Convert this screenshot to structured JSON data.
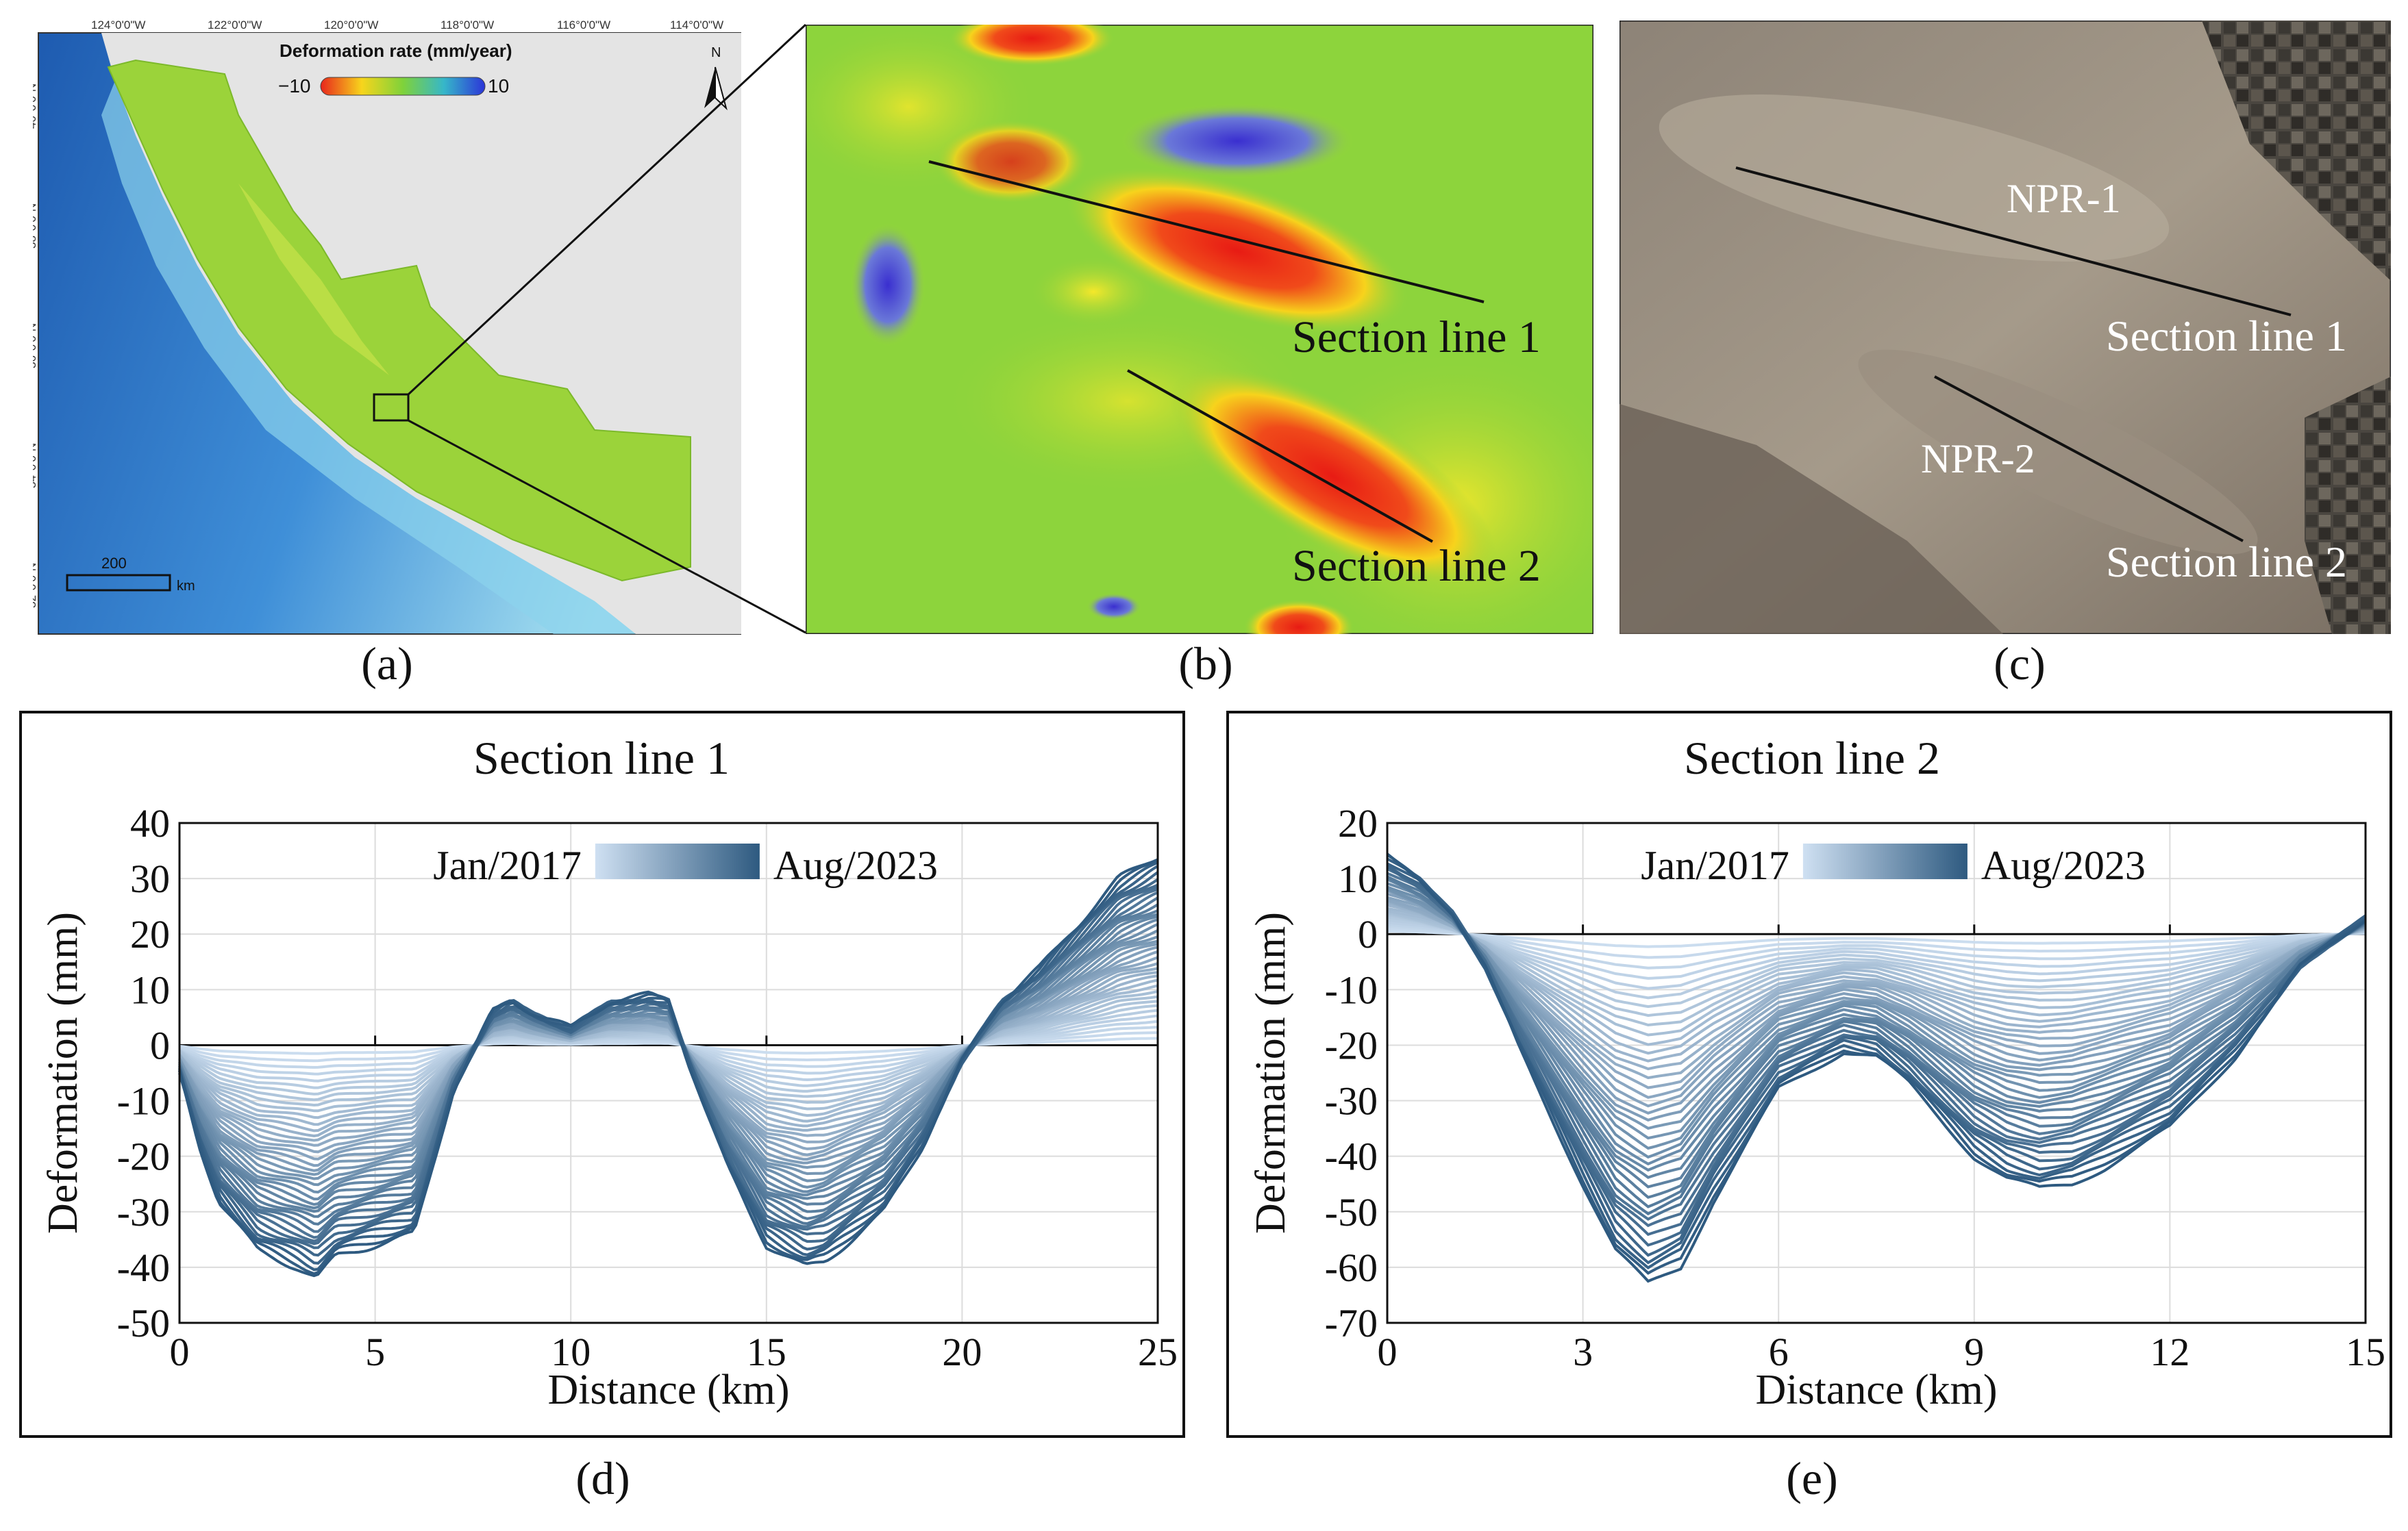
{
  "panel_a": {
    "caption": "(a)",
    "lon_ticks": [
      "124°0'0\"W",
      "122°0'0\"W",
      "120°0'0\"W",
      "118°0'0\"W",
      "116°0'0\"W",
      "114°0'0\"W"
    ],
    "lat_ticks": [
      "40°0'0\"N",
      "38°0'0\"N",
      "36°0'0\"N",
      "34°0'0\"N",
      "32°0'0\"N"
    ],
    "legend_title": "Deformation rate (mm/year)",
    "legend_min": "−10",
    "legend_max": "10",
    "north_label": "N",
    "scale_value": "200",
    "scale_unit": "km",
    "colors": {
      "ocean_deep": "#1f5fb8",
      "ocean_shallow": "#8fd6ee",
      "land": "#e2e2e2",
      "data": "#9bd33a"
    }
  },
  "panel_b": {
    "caption": "(b)",
    "line1_label": "Section line 1",
    "line2_label": "Section line 2"
  },
  "panel_c": {
    "caption": "(c)",
    "npr1_label": "NPR-1",
    "npr2_label": "NPR-2",
    "line1_label": "Section line 1",
    "line2_label": "Section line 2"
  },
  "chart_data": [
    {
      "type": "line",
      "panel": "(d)",
      "title": "Section line 1",
      "xlabel": "Distance (km)",
      "ylabel": "Deformation (mm)",
      "xlim": [
        0,
        25
      ],
      "ylim": [
        -50,
        40
      ],
      "xticks": [
        0,
        5,
        10,
        15,
        20,
        25
      ],
      "yticks": [
        -50,
        -40,
        -30,
        -20,
        -10,
        0,
        10,
        20,
        30,
        40
      ],
      "legend_start": "Jan/2017",
      "legend_end": "Aug/2023",
      "color_start": "#cfe0f2",
      "color_end": "#2e5a80",
      "series_count": 40,
      "final_profile": {
        "x": [
          0,
          0.5,
          1,
          2,
          3,
          3.5,
          4,
          5,
          6,
          7,
          8,
          8.5,
          9,
          10,
          11,
          12,
          12.5,
          13,
          14,
          15,
          16,
          16.5,
          17,
          18,
          19,
          20,
          21,
          22,
          23,
          24,
          25
        ],
        "y": [
          -5,
          -18,
          -28,
          -37,
          -40,
          -42,
          -38,
          -36,
          -34,
          -8,
          6,
          8,
          6,
          3,
          8,
          9,
          8,
          -3,
          -22,
          -36,
          -40,
          -39,
          -36,
          -30,
          -18,
          -3,
          8,
          14,
          22,
          30,
          34
        ]
      }
    },
    {
      "type": "line",
      "panel": "(e)",
      "title": "Section line 2",
      "xlabel": "Distance (km)",
      "ylabel": "Deformation (mm)",
      "xlim": [
        0,
        15
      ],
      "ylim": [
        -70,
        20
      ],
      "xticks": [
        0,
        3,
        6,
        9,
        12,
        15
      ],
      "yticks": [
        -70,
        -60,
        -50,
        -40,
        -30,
        -20,
        -10,
        0,
        10,
        20
      ],
      "legend_start": "Jan/2017",
      "legend_end": "Aug/2023",
      "color_start": "#cfe0f2",
      "color_end": "#2e5a80",
      "series_count": 40,
      "final_profile": {
        "x": [
          0,
          0.5,
          1,
          1.5,
          2,
          3,
          3.5,
          4,
          4.5,
          5,
          6,
          7,
          7.5,
          8,
          9,
          9.5,
          10,
          10.5,
          11,
          12,
          13,
          14,
          15
        ],
        "y": [
          14,
          10,
          4,
          -6,
          -20,
          -45,
          -57,
          -63,
          -60,
          -48,
          -28,
          -21,
          -22,
          -27,
          -40,
          -44,
          -46,
          -45,
          -42,
          -35,
          -22,
          -6,
          3
        ]
      }
    }
  ]
}
